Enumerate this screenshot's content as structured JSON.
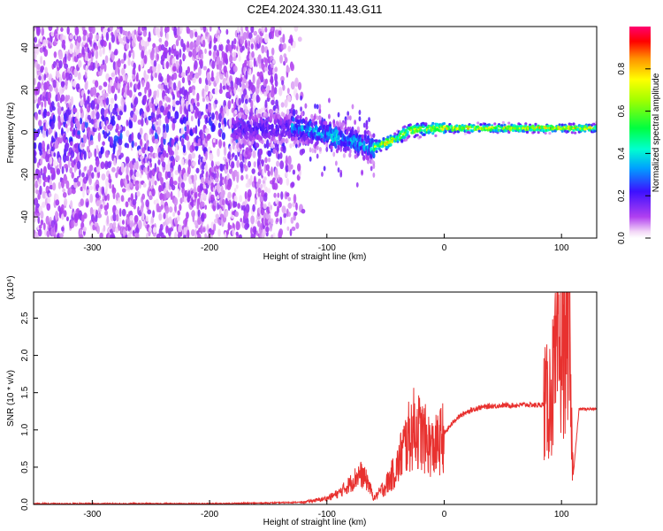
{
  "title": "C2E4.2024.330.11.43.G11",
  "chart_data": [
    {
      "type": "heatmap",
      "title": "C2E4.2024.330.11.43.G11",
      "xlabel": "Height of straight line (km)",
      "ylabel": "Frequency (Hz)",
      "xlim": [
        -350,
        130
      ],
      "ylim": [
        -50,
        50
      ],
      "x_ticks": [
        -300,
        -200,
        -100,
        0,
        100
      ],
      "x_tick_labels": [
        "-300",
        "-200",
        "-100",
        "0",
        "100"
      ],
      "y_ticks": [
        -40,
        -20,
        0,
        20,
        40
      ],
      "y_tick_labels": [
        "-40",
        "-20",
        "0",
        "20",
        "40"
      ],
      "colorbar": {
        "label": "Normalized spectral amplitude",
        "range": [
          0,
          1
        ],
        "ticks": [
          0.0,
          0.2,
          0.4,
          0.6,
          0.8
        ],
        "tick_labels": [
          "0.0",
          "0.2",
          "0.4",
          "0.6",
          "0.8"
        ],
        "colormap": "rainbow (magenta-blue-cyan-green-yellow-red)"
      },
      "regions": [
        {
          "x_range": [
            -350,
            -130
          ],
          "freq_spread_hz": [
            -50,
            50
          ],
          "amplitude": [
            0.0,
            0.25
          ],
          "description": "broad noise, violet"
        },
        {
          "x_range": [
            -130,
            -60
          ],
          "center_hz": [
            3,
            -7
          ],
          "amplitude": [
            0.3,
            0.5
          ],
          "description": "signal emerging, cyan/green"
        },
        {
          "x_range": [
            -60,
            0
          ],
          "center_hz": [
            -5,
            2
          ],
          "amplitude": [
            0.6,
            0.9
          ],
          "description": "signal bending, yellow/red"
        },
        {
          "x_range": [
            0,
            130
          ],
          "center_hz": [
            2,
            2
          ],
          "amplitude": [
            0.7,
            0.95
          ],
          "description": "steady tone near 2 Hz, orange/red"
        }
      ]
    },
    {
      "type": "line",
      "xlabel": "Height of straight line (km)",
      "ylabel": "SNR (10 * v/v)",
      "y_scale_label": "(x10⁴)",
      "xlim": [
        -350,
        130
      ],
      "ylim": [
        0,
        2.85
      ],
      "x_ticks": [
        -300,
        -200,
        -100,
        0,
        100
      ],
      "x_tick_labels": [
        "-300",
        "-200",
        "-100",
        "0",
        "100"
      ],
      "y_ticks": [
        0.0,
        0.5,
        1.0,
        1.5,
        2.0,
        2.5
      ],
      "y_tick_labels": [
        "0.0",
        "0.5",
        "1.0",
        "1.5",
        "2.0",
        "2.5"
      ],
      "color": "#e8312f",
      "series": [
        {
          "x": [
            -350,
            -300,
            -250,
            -200,
            -150,
            -120,
            -100,
            -90,
            -80,
            -72,
            -65,
            -60,
            -50,
            -40,
            -35,
            -30,
            -25,
            -20,
            -15,
            -10,
            -5,
            0,
            10,
            20,
            30,
            40,
            50,
            60,
            70,
            80,
            88,
            92,
            96,
            100,
            104,
            106,
            108,
            110,
            115,
            120,
            130
          ],
          "y": [
            0.01,
            0.01,
            0.01,
            0.01,
            0.02,
            0.03,
            0.08,
            0.15,
            0.28,
            0.42,
            0.3,
            0.08,
            0.25,
            0.5,
            0.75,
            0.9,
            1.05,
            0.95,
            0.85,
            0.75,
            0.8,
            0.95,
            1.15,
            1.25,
            1.3,
            1.32,
            1.33,
            1.33,
            1.34,
            1.33,
            1.35,
            1.55,
            1.9,
            2.1,
            2.3,
            2.85,
            1.2,
            0.4,
            1.28,
            1.28,
            1.28
          ]
        }
      ]
    }
  ]
}
